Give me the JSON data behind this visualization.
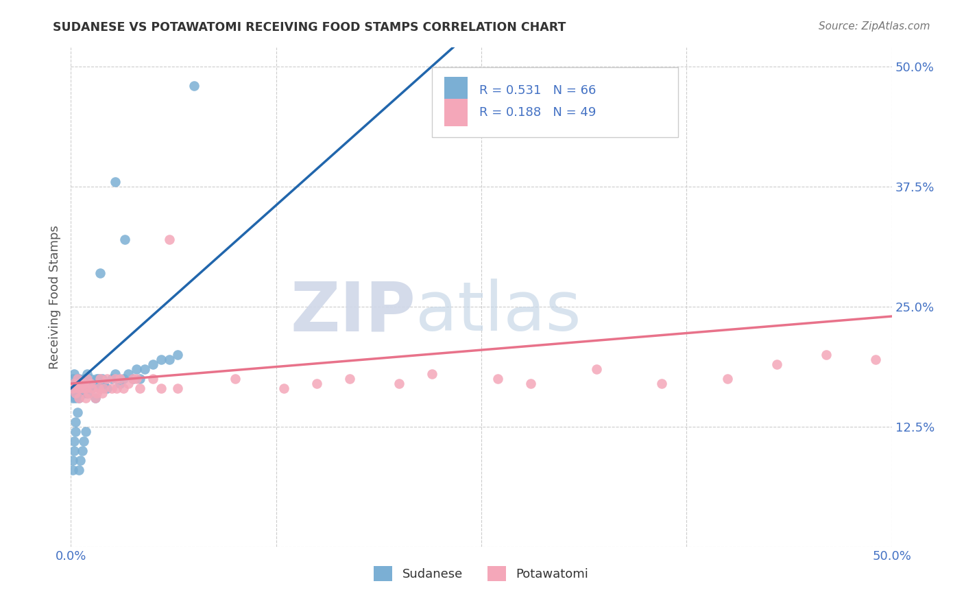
{
  "title": "SUDANESE VS POTAWATOMI RECEIVING FOOD STAMPS CORRELATION CHART",
  "source": "Source: ZipAtlas.com",
  "ylabel": "Receiving Food Stamps",
  "xlim": [
    0.0,
    0.5
  ],
  "ylim": [
    0.0,
    0.52
  ],
  "xtick_vals": [
    0.0,
    0.125,
    0.25,
    0.375,
    0.5
  ],
  "xticklabels": [
    "0.0%",
    "",
    "",
    "",
    "50.0%"
  ],
  "ytick_vals": [
    0.0,
    0.125,
    0.25,
    0.375,
    0.5
  ],
  "yticklabels": [
    "",
    "12.5%",
    "25.0%",
    "37.5%",
    "50.0%"
  ],
  "sudanese_color": "#7bafd4",
  "potawatomi_color": "#f4a7b9",
  "sudanese_line_color": "#2166ac",
  "potawatomi_line_color": "#e8728a",
  "R_sudanese": 0.531,
  "N_sudanese": 66,
  "R_potawatomi": 0.188,
  "N_potawatomi": 49,
  "legend_label_sudanese": "Sudanese",
  "legend_label_potawatomi": "Potawatomi",
  "watermark_zip": "ZIP",
  "watermark_atlas": "atlas",
  "sudanese_x": [
    0.001,
    0.001,
    0.002,
    0.002,
    0.002,
    0.003,
    0.003,
    0.003,
    0.004,
    0.004,
    0.004,
    0.005,
    0.005,
    0.005,
    0.006,
    0.006,
    0.007,
    0.007,
    0.008,
    0.008,
    0.009,
    0.009,
    0.01,
    0.01,
    0.01,
    0.011,
    0.012,
    0.012,
    0.013,
    0.014,
    0.015,
    0.016,
    0.017,
    0.018,
    0.019,
    0.02,
    0.022,
    0.025,
    0.027,
    0.03,
    0.032,
    0.035,
    0.038,
    0.04,
    0.042,
    0.045,
    0.05,
    0.055,
    0.06,
    0.065,
    0.001,
    0.001,
    0.002,
    0.002,
    0.003,
    0.003,
    0.004,
    0.005,
    0.006,
    0.007,
    0.008,
    0.009,
    0.018,
    0.027,
    0.033,
    0.075
  ],
  "sudanese_y": [
    0.155,
    0.175,
    0.16,
    0.18,
    0.16,
    0.165,
    0.17,
    0.155,
    0.17,
    0.165,
    0.175,
    0.16,
    0.175,
    0.155,
    0.165,
    0.17,
    0.17,
    0.165,
    0.175,
    0.16,
    0.175,
    0.165,
    0.18,
    0.16,
    0.175,
    0.165,
    0.17,
    0.175,
    0.165,
    0.17,
    0.155,
    0.175,
    0.175,
    0.165,
    0.175,
    0.17,
    0.165,
    0.175,
    0.18,
    0.17,
    0.175,
    0.18,
    0.175,
    0.185,
    0.175,
    0.185,
    0.19,
    0.195,
    0.195,
    0.2,
    0.08,
    0.09,
    0.1,
    0.11,
    0.12,
    0.13,
    0.14,
    0.08,
    0.09,
    0.1,
    0.11,
    0.12,
    0.285,
    0.38,
    0.32,
    0.48
  ],
  "potawatomi_x": [
    0.001,
    0.002,
    0.003,
    0.004,
    0.005,
    0.005,
    0.006,
    0.007,
    0.008,
    0.009,
    0.009,
    0.01,
    0.011,
    0.012,
    0.013,
    0.015,
    0.016,
    0.017,
    0.018,
    0.019,
    0.02,
    0.022,
    0.025,
    0.027,
    0.028,
    0.03,
    0.032,
    0.035,
    0.038,
    0.04,
    0.042,
    0.05,
    0.055,
    0.06,
    0.065,
    0.1,
    0.13,
    0.15,
    0.17,
    0.2,
    0.22,
    0.26,
    0.28,
    0.32,
    0.36,
    0.4,
    0.43,
    0.46,
    0.49
  ],
  "potawatomi_y": [
    0.165,
    0.17,
    0.16,
    0.175,
    0.165,
    0.155,
    0.17,
    0.165,
    0.17,
    0.155,
    0.165,
    0.175,
    0.16,
    0.17,
    0.165,
    0.155,
    0.16,
    0.165,
    0.175,
    0.16,
    0.165,
    0.175,
    0.165,
    0.175,
    0.165,
    0.175,
    0.165,
    0.17,
    0.175,
    0.175,
    0.165,
    0.175,
    0.165,
    0.32,
    0.165,
    0.175,
    0.165,
    0.17,
    0.175,
    0.17,
    0.18,
    0.175,
    0.17,
    0.185,
    0.17,
    0.175,
    0.19,
    0.2,
    0.195
  ]
}
